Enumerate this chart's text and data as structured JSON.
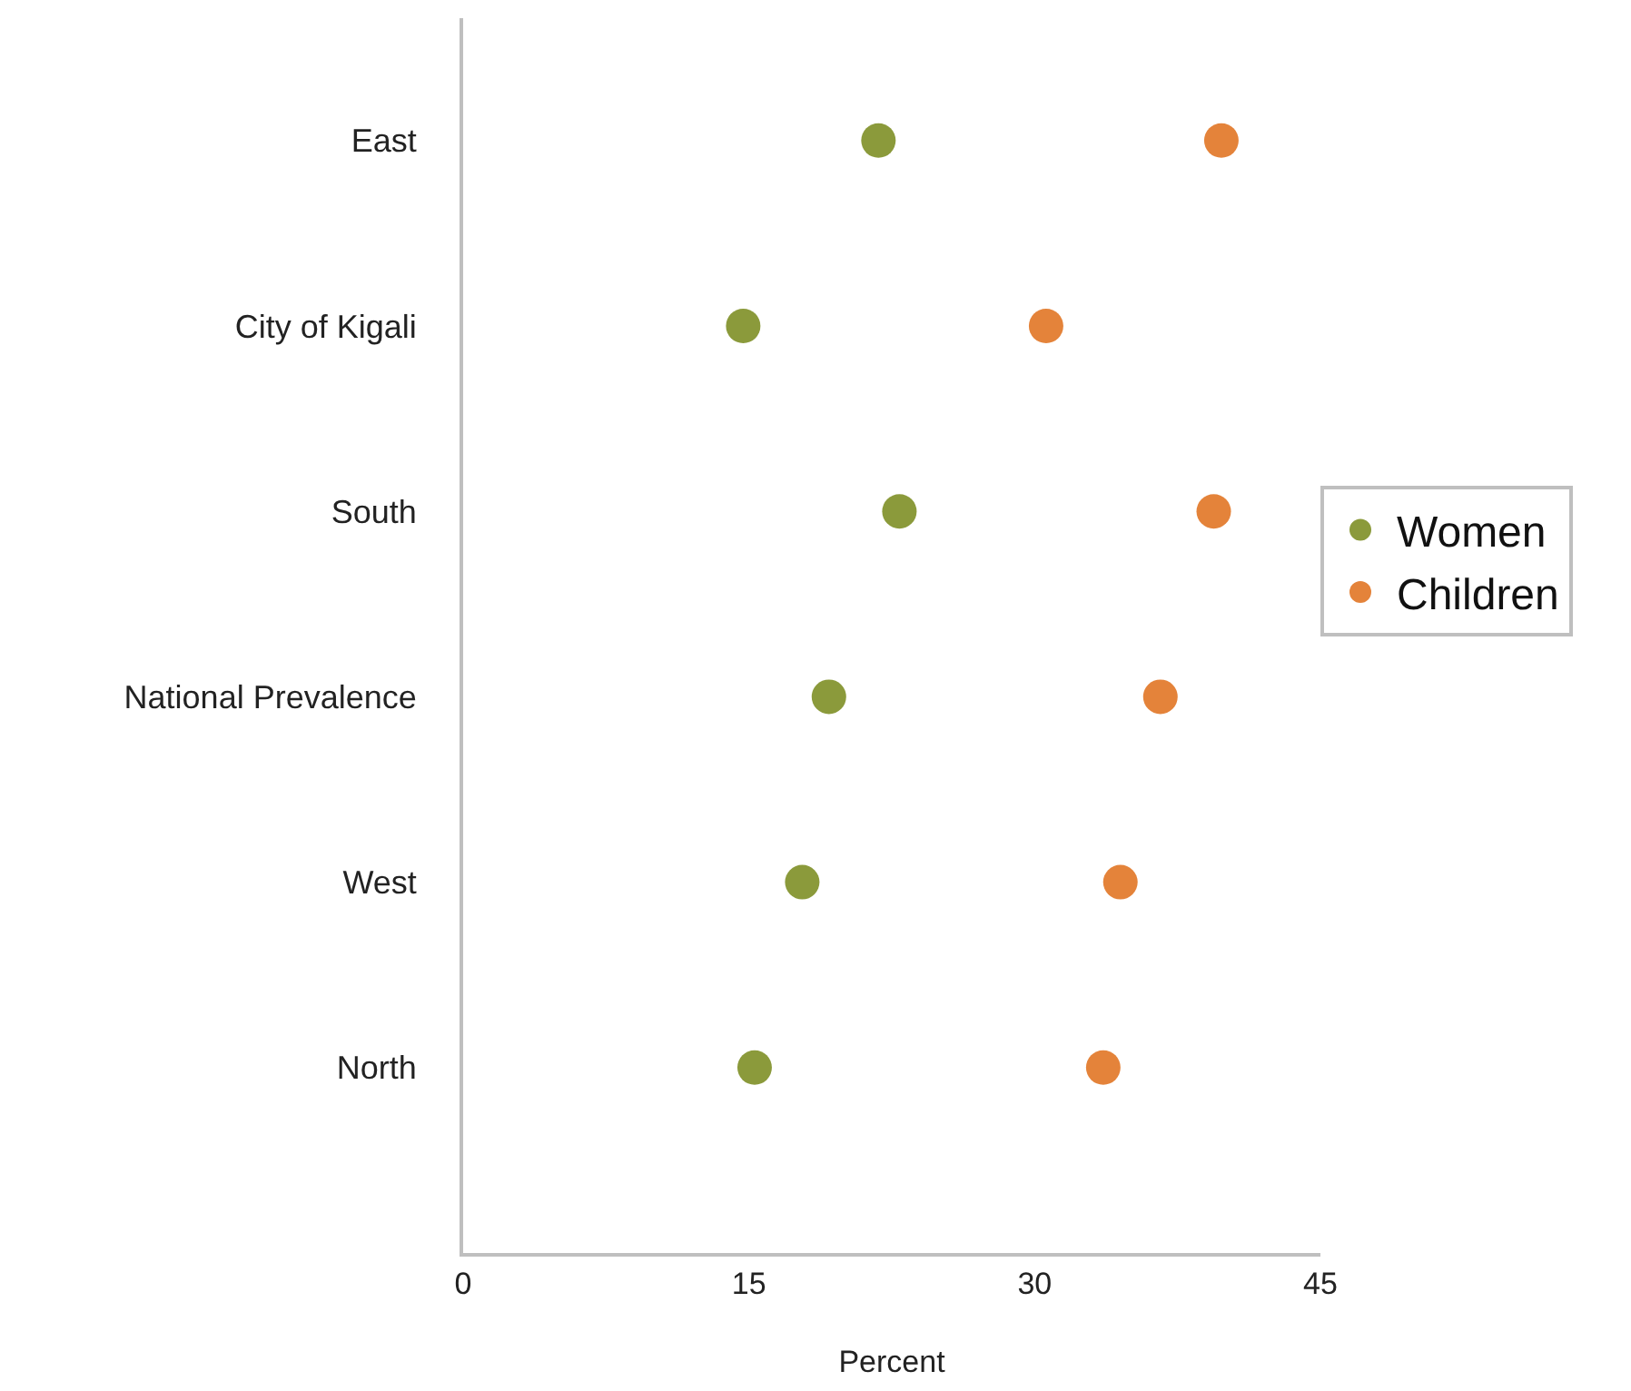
{
  "chart_data": {
    "type": "scatter",
    "orientation": "horizontal",
    "xlabel": "Percent",
    "categories": [
      "East",
      "City of Kigali",
      "South",
      "National Prevalence",
      "West",
      "North"
    ],
    "series": [
      {
        "name": "Women",
        "color": "#8b9a3b",
        "values": [
          21.8,
          14.7,
          22.9,
          19.2,
          17.8,
          15.3
        ]
      },
      {
        "name": "Children",
        "color": "#e4833a",
        "values": [
          39.8,
          30.6,
          39.4,
          36.6,
          34.5,
          33.6
        ]
      }
    ],
    "xlim": [
      0,
      45
    ],
    "xticks": [
      0,
      15,
      30,
      45
    ],
    "grid": false,
    "legend": "right",
    "marker": "circle"
  }
}
